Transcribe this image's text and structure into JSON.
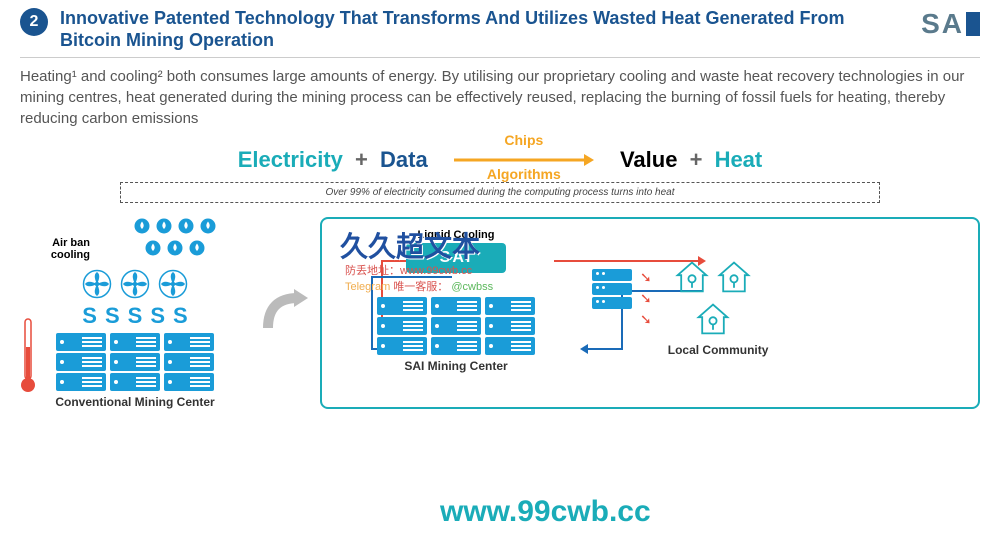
{
  "header": {
    "badge_number": "2",
    "title": "Innovative Patented Technology That Transforms And Utilizes Wasted Heat Generated From Bitcoin Mining Operation",
    "logo_text": "SA"
  },
  "subtitle": "Heating¹ and cooling² both consumes large amounts of energy. By utilising our proprietary cooling and waste heat recovery technologies in our mining centres, heat generated during the mining process can be effectively reused, replacing the burning of fossil fuels for heating, thereby reducing carbon emissions",
  "equation": {
    "electricity": "Electricity",
    "plus1": "+",
    "data": "Data",
    "chips": "Chips",
    "algorithms": "Algorithms",
    "value": "Value",
    "plus2": "+",
    "heat": "Heat"
  },
  "dashed_note": "Over 99% of electricity consumed during the computing process turns into heat",
  "watermarks": {
    "cn_text": "久久超文本",
    "line1": "防丢地址：www.99cwb.cc",
    "line2_a": "Telegram",
    "line2_b": "唯一客服：",
    "line2_c": "@cwbss",
    "url": "www.99cwb.cc"
  },
  "left_panel": {
    "air_label": "Air ban cooling",
    "bottom_label": "Conventional Mining Center",
    "flame_count": 7,
    "fan_count": 3,
    "wave_count": 5,
    "server_cols": 3,
    "server_rows": 3
  },
  "right_panel": {
    "liquid_label": "Liquid Cooling",
    "sai_box": "SAI",
    "center_label": "SAI Mining Center",
    "community_label": "Local Community",
    "server_cols": 3,
    "server_rows": 3,
    "device_rows": 3,
    "house_count": 3,
    "heat_arrow_count": 3
  },
  "colors": {
    "primary_blue": "#1a5490",
    "teal": "#1aacb8",
    "icon_blue": "#1a9cd8",
    "orange": "#f5a623",
    "red": "#e74c3c",
    "text_gray": "#555555",
    "logo_gray": "#5a7a8c"
  },
  "svg_defs": {
    "arrow_color": "#f5a623",
    "pipe_red": "#e74c3c",
    "pipe_blue": "#1a6bb8"
  }
}
